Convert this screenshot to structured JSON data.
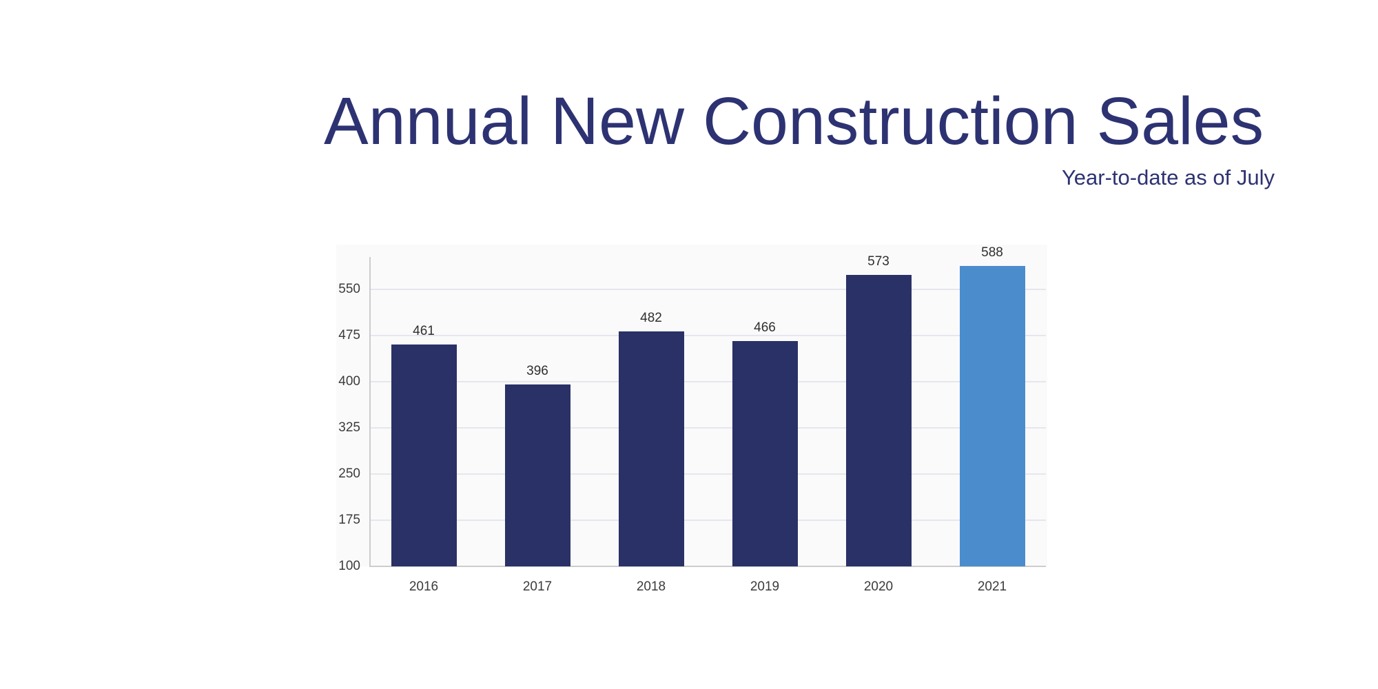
{
  "header": {
    "title": "Annual New Construction Sales",
    "subtitle": "Year-to-date as of July",
    "title_color": "#2d3272"
  },
  "chart_data": {
    "type": "bar",
    "title": "Annual New Construction Sales",
    "subtitle": "Year-to-date as of July",
    "categories": [
      "2016",
      "2017",
      "2018",
      "2019",
      "2020",
      "2021"
    ],
    "values": [
      461,
      396,
      482,
      466,
      573,
      588
    ],
    "xlabel": "",
    "ylabel": "",
    "ylim": [
      100,
      610
    ],
    "yticks": [
      100,
      175,
      250,
      325,
      400,
      475,
      550
    ],
    "grid": "horizontal",
    "legend": false,
    "value_labels_shown": true,
    "highlight_index": 5,
    "colors": {
      "bar": "#2a3166",
      "highlight_bar": "#4b8ccd",
      "grid_line": "#e5e7ed",
      "axis_line": "#cccccc",
      "tick_label": "#3b3b3b",
      "value_label": "#2f2f2f",
      "plot_background": "#fafafb"
    }
  }
}
